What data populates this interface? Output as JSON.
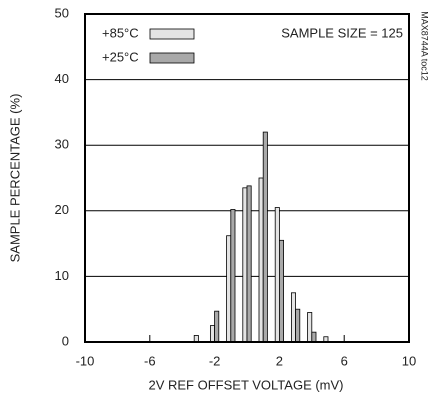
{
  "chart_data": {
    "type": "bar",
    "x": [
      -3,
      -2,
      -1,
      0,
      1,
      2,
      3,
      4,
      5
    ],
    "series": [
      {
        "name": "+85°C",
        "color": "#e4e4e4",
        "values": [
          1,
          2.5,
          16.2,
          23.5,
          25,
          20.5,
          7.5,
          4.5,
          0.8
        ]
      },
      {
        "name": "+25°C",
        "color": "#a9a9a9",
        "values": [
          0,
          4.7,
          20.2,
          23.8,
          32,
          15.5,
          5,
          1.5,
          0
        ]
      }
    ],
    "xlim": [
      -10,
      10
    ],
    "xticks": [
      -10,
      -6,
      -2,
      2,
      6,
      10
    ],
    "ylim": [
      0,
      50
    ],
    "yticks": [
      0,
      10,
      20,
      30,
      40,
      50
    ],
    "xlabel": "2V REF OFFSET VOLTAGE (mV)",
    "ylabel": "SAMPLE PERCENTAGE (%)",
    "annotations": [
      "SAMPLE SIZE = 125",
      "MAX8744A toc12"
    ],
    "grid": true
  }
}
